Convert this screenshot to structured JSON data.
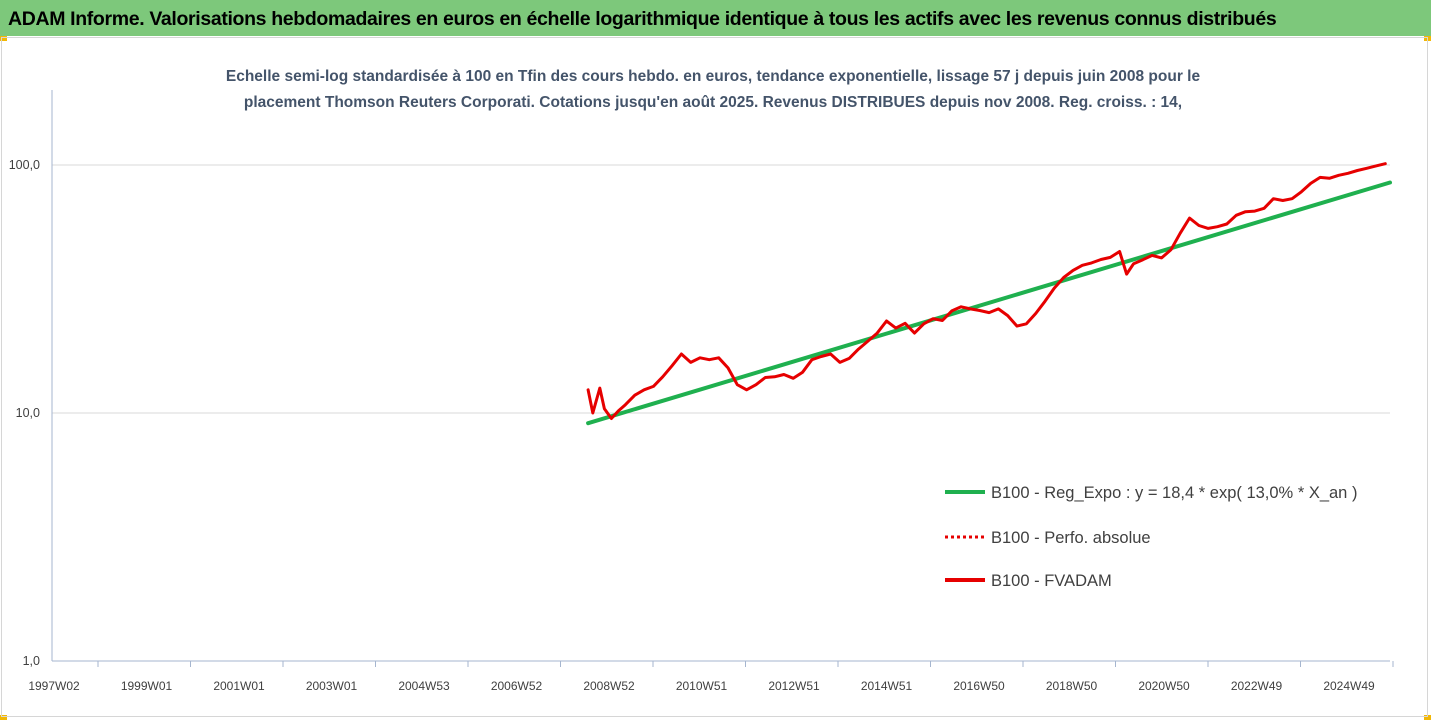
{
  "header": {
    "title": "ADAM Informe. Valorisations hebdomadaires en euros en échelle logarithmique identique à tous les actifs avec les revenus connus distribués"
  },
  "colors": {
    "header_bg": "#7dc87b",
    "accent": "#f2b705",
    "regression": "#1fb04f",
    "performance": "#e60000",
    "fvadam": "#e60000"
  },
  "chart_data": {
    "type": "line",
    "title_lines": [
      "Echelle semi-log standardisée à 100 en Tfin des cours hebdo. en euros, tendance exponentielle, lissage 57 j depuis juin 2008 pour le",
      "placement Thomson Reuters Corporati. Cotations jusqu'en août 2025. Revenus DISTRIBUES depuis nov 2008. Reg. croiss. : 14,"
    ],
    "y_scale": "log",
    "ylim": [
      1,
      100
    ],
    "y_ticks": [
      "1,0",
      "10,0",
      "100,0"
    ],
    "x_range": [
      1997.0,
      2025.7
    ],
    "x_ticks": [
      "1997W02",
      "1999W01",
      "2001W01",
      "2003W01",
      "2004W53",
      "2006W52",
      "2008W52",
      "2010W51",
      "2012W51",
      "2014W51",
      "2016W50",
      "2018W50",
      "2020W50",
      "2022W49",
      "2024W49"
    ],
    "grid": "horizontal gridlines at 10 and 100, vertical ticks on x axis",
    "legend_position": "right",
    "legend": [
      {
        "label": "B100 - Reg_Expo : y = 18,4 * exp( 13,0% *  X_an )",
        "color": "#1fb04f",
        "style": "solid"
      },
      {
        "label": "B100 - Perfo. absolue",
        "color": "#e60000",
        "style": "dotted"
      },
      {
        "label": "B100 - FVADAM",
        "color": "#e60000",
        "style": "solid"
      }
    ],
    "series": [
      {
        "name": "B100 - Reg_Expo : y = 18,4 * exp( 13,0% *  X_an )",
        "x": [
          2008.5,
          2025.7
        ],
        "y": [
          9.1,
          85.0
        ]
      },
      {
        "name": "B100 - FVADAM",
        "x": [
          2008.5,
          2008.6,
          2008.75,
          2008.85,
          2009.0,
          2009.15,
          2009.3,
          2009.5,
          2009.7,
          2009.9,
          2010.1,
          2010.3,
          2010.5,
          2010.7,
          2010.9,
          2011.1,
          2011.3,
          2011.5,
          2011.7,
          2011.9,
          2012.1,
          2012.3,
          2012.5,
          2012.7,
          2012.9,
          2013.1,
          2013.3,
          2013.5,
          2013.7,
          2013.9,
          2014.1,
          2014.3,
          2014.5,
          2014.7,
          2014.9,
          2015.1,
          2015.3,
          2015.5,
          2015.7,
          2015.9,
          2016.1,
          2016.3,
          2016.5,
          2016.7,
          2016.9,
          2017.1,
          2017.3,
          2017.5,
          2017.7,
          2017.9,
          2018.1,
          2018.3,
          2018.5,
          2018.7,
          2018.9,
          2019.1,
          2019.3,
          2019.5,
          2019.7,
          2019.9,
          2020.05,
          2020.2,
          2020.4,
          2020.6,
          2020.8,
          2021.0,
          2021.2,
          2021.4,
          2021.6,
          2021.8,
          2022.0,
          2022.2,
          2022.4,
          2022.6,
          2022.8,
          2023.0,
          2023.2,
          2023.4,
          2023.6,
          2023.8,
          2024.0,
          2024.2,
          2024.4,
          2024.6,
          2024.8,
          2025.0,
          2025.2,
          2025.4,
          2025.6
        ],
        "y": [
          12.4,
          10.0,
          12.6,
          10.4,
          9.5,
          10.2,
          10.8,
          11.8,
          12.4,
          12.8,
          14.0,
          15.5,
          17.3,
          16.0,
          16.7,
          16.4,
          16.7,
          15.2,
          13.0,
          12.4,
          13.0,
          13.9,
          14.0,
          14.3,
          13.8,
          14.6,
          16.4,
          16.9,
          17.3,
          16.0,
          16.6,
          18.1,
          19.5,
          21.0,
          23.5,
          22.0,
          23.0,
          21.0,
          22.9,
          24.0,
          23.6,
          25.8,
          26.8,
          26.3,
          25.9,
          25.4,
          26.3,
          24.7,
          22.4,
          22.9,
          25.2,
          28.2,
          31.9,
          35.2,
          37.6,
          39.4,
          40.3,
          41.6,
          42.4,
          44.8,
          36.3,
          40.0,
          41.5,
          43.2,
          42.2,
          45.5,
          53.1,
          61.1,
          57.0,
          55.5,
          56.4,
          57.8,
          62.7,
          64.8,
          65.2,
          66.9,
          73.1,
          71.9,
          73.1,
          78.0,
          84.3,
          89.1,
          88.4,
          90.9,
          92.6,
          95.0,
          97.0,
          99.2,
          101.2
        ]
      }
    ]
  }
}
